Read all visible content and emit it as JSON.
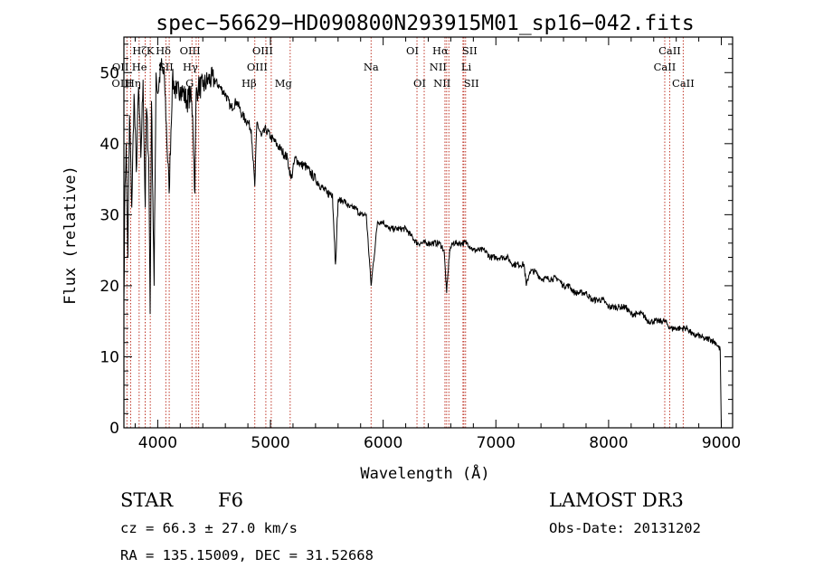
{
  "chart_data": {
    "type": "line",
    "title": "spec−56629−HD090800N293915M01_sp16−042.fits",
    "xlabel": "Wavelength (Å)",
    "ylabel": "Flux (relative)",
    "xlim": [
      3700,
      9100
    ],
    "ylim": [
      0,
      55
    ],
    "xticks": [
      4000,
      5000,
      6000,
      7000,
      8000,
      9000
    ],
    "yticks": [
      0,
      10,
      20,
      30,
      40,
      50
    ],
    "series": [
      {
        "name": "spectrum",
        "color": "#000000",
        "x": [
          3700,
          3710,
          3720,
          3735,
          3750,
          3770,
          3790,
          3810,
          3830,
          3850,
          3870,
          3889,
          3900,
          3920,
          3933,
          3945,
          3968,
          3985,
          4000,
          4030,
          4060,
          4101,
          4130,
          4170,
          4200,
          4230,
          4260,
          4290,
          4310,
          4330,
          4340,
          4360,
          4400,
          4450,
          4500,
          4550,
          4600,
          4650,
          4700,
          4750,
          4800,
          4830,
          4861,
          4880,
          4920,
          4960,
          5000,
          5050,
          5100,
          5150,
          5183,
          5220,
          5270,
          5300,
          5350,
          5400,
          5450,
          5500,
          5550,
          5577,
          5600,
          5650,
          5700,
          5750,
          5800,
          5850,
          5893,
          5950,
          6000,
          6050,
          6100,
          6150,
          6200,
          6250,
          6300,
          6350,
          6400,
          6450,
          6500,
          6540,
          6563,
          6590,
          6620,
          6650,
          6700,
          6750,
          6800,
          6850,
          6900,
          6950,
          7000,
          7050,
          7100,
          7150,
          7200,
          7250,
          7270,
          7300,
          7350,
          7400,
          7450,
          7500,
          7550,
          7600,
          7650,
          7700,
          7750,
          7800,
          7850,
          7900,
          7950,
          8000,
          8050,
          8100,
          8150,
          8200,
          8250,
          8300,
          8350,
          8400,
          8450,
          8500,
          8550,
          8600,
          8650,
          8700,
          8750,
          8800,
          8850,
          8900,
          8950,
          8990,
          9000
        ],
        "y": [
          18,
          34,
          40,
          24,
          44,
          31,
          47,
          36,
          48,
          38,
          49,
          31,
          45,
          38,
          16,
          46,
          20,
          50,
          47,
          51,
          49,
          33,
          49,
          47,
          48,
          47,
          46,
          47,
          44,
          33,
          47,
          48,
          48,
          49,
          49,
          48,
          47,
          45,
          46,
          44,
          43,
          42,
          34,
          43,
          41,
          42,
          41,
          40,
          39,
          38,
          35,
          38,
          37,
          37,
          36,
          35,
          34,
          33,
          33,
          23,
          32,
          32,
          31,
          31,
          30,
          30,
          20,
          29,
          29,
          28,
          28,
          28,
          28,
          27,
          26,
          26,
          26,
          26,
          26,
          25,
          19,
          25,
          26,
          26,
          26,
          26,
          25,
          25,
          25,
          24,
          24,
          24,
          24,
          23,
          23,
          23,
          20,
          22,
          22,
          21,
          21,
          21,
          21,
          20,
          20,
          19,
          19,
          19,
          18,
          18,
          18,
          17,
          17,
          17,
          17,
          16,
          16,
          16,
          15,
          15,
          15,
          15,
          14,
          14,
          14,
          14,
          13,
          13,
          12.5,
          12.5,
          12,
          11,
          0
        ]
      }
    ],
    "lines": [
      {
        "name": "Hζ",
        "wl": 3889,
        "row": 0,
        "side": "left"
      },
      {
        "name": "OII",
        "wl": 3727,
        "row": 1,
        "side": "left"
      },
      {
        "name": "OIII",
        "wl": 3760,
        "row": 2,
        "side": "left"
      },
      {
        "name": "K",
        "wl": 3934,
        "row": 0,
        "side": "center"
      },
      {
        "name": "He",
        "wl": 3889,
        "row": 1,
        "side": "left"
      },
      {
        "name": "Hη",
        "wl": 3835,
        "row": 2,
        "side": "left"
      },
      {
        "name": "Hδ",
        "wl": 4102,
        "row": 0,
        "side": "left"
      },
      {
        "name": "SII",
        "wl": 4072,
        "row": 1,
        "side": "center"
      },
      {
        "name": "OIII",
        "wl": 4363,
        "row": 0,
        "side": "left"
      },
      {
        "name": "Hγ",
        "wl": 4341,
        "row": 1,
        "side": "left"
      },
      {
        "name": "G",
        "wl": 4304,
        "row": 2,
        "side": "left"
      },
      {
        "name": "OIII",
        "wl": 5007,
        "row": 0,
        "side": "left"
      },
      {
        "name": "OIII",
        "wl": 4959,
        "row": 1,
        "side": "left"
      },
      {
        "name": "Hβ",
        "wl": 4861,
        "row": 2,
        "side": "left"
      },
      {
        "name": "Mg",
        "wl": 5175,
        "row": 2,
        "side": "left"
      },
      {
        "name": "Na",
        "wl": 5893,
        "row": 1,
        "side": "center"
      },
      {
        "name": "OI",
        "wl": 6300,
        "row": 0,
        "side": "left"
      },
      {
        "name": "OI",
        "wl": 6364,
        "row": 2,
        "side": "left"
      },
      {
        "name": "Hα",
        "wl": 6563,
        "row": 0,
        "side": "left"
      },
      {
        "name": "NII",
        "wl": 6548,
        "row": 1,
        "side": "left"
      },
      {
        "name": "NII",
        "wl": 6583,
        "row": 2,
        "side": "left"
      },
      {
        "name": "SII",
        "wl": 6716,
        "row": 0,
        "side": "right"
      },
      {
        "name": "Li",
        "wl": 6708,
        "row": 1,
        "side": "right"
      },
      {
        "name": "SII",
        "wl": 6731,
        "row": 2,
        "side": "right"
      },
      {
        "name": "CaII",
        "wl": 8542,
        "row": 0,
        "side": "center"
      },
      {
        "name": "CaII",
        "wl": 8498,
        "row": 1,
        "side": "center"
      },
      {
        "name": "CaII",
        "wl": 8662,
        "row": 2,
        "side": "center"
      }
    ]
  },
  "info": {
    "object_type": "STAR",
    "subclass": "F6",
    "survey": "LAMOST DR3",
    "redshift": "cz = 66.3 ± 27.0 km/s",
    "obs_date": "Obs-Date: 20131202",
    "coordinates": "RA = 135.15009, DEC =  31.52668"
  },
  "colors": {
    "spectrum": "#000000",
    "line_marker": "#c0392b",
    "axes": "#000000",
    "background": "#ffffff"
  }
}
